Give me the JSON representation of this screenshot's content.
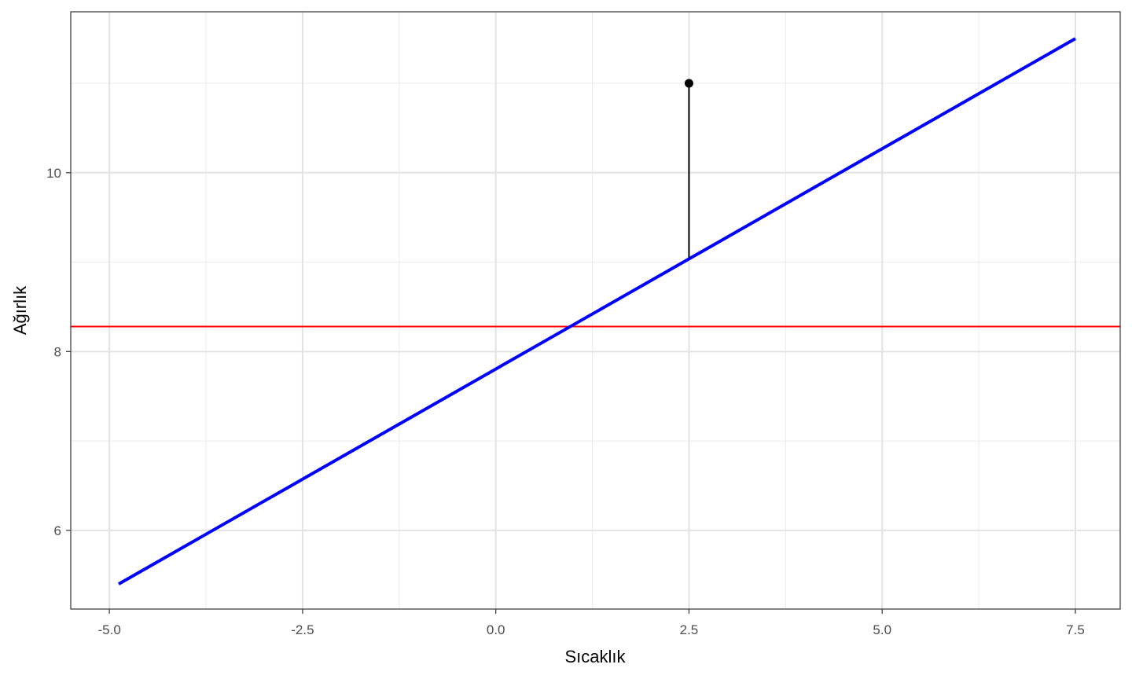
{
  "chart_data": {
    "type": "line",
    "title": "",
    "xlabel": "Sıcaklık",
    "ylabel": "Ağırlık",
    "xlim": [
      -5.5,
      8.08
    ],
    "ylim": [
      5.12,
      11.8
    ],
    "x_major_ticks": [
      -5.0,
      -2.5,
      0.0,
      2.5,
      5.0,
      7.5
    ],
    "x_tick_labels": [
      "-5.0",
      "-2.5",
      "0.0",
      "2.5",
      "5.0",
      "7.5"
    ],
    "x_minor_ticks": [
      -3.75,
      -1.25,
      1.25,
      3.75,
      6.25
    ],
    "y_major_ticks": [
      6,
      8,
      10
    ],
    "y_tick_labels": [
      "6",
      "8",
      "10"
    ],
    "y_minor_ticks": [
      7,
      9,
      11
    ],
    "grid": true,
    "series": [
      {
        "kind": "regression-line",
        "color": "#0000ff",
        "x": [
          -4.88,
          7.5
        ],
        "y": [
          5.4,
          11.5
        ]
      },
      {
        "kind": "horizontal-line",
        "color": "#ff0000",
        "y": 8.28
      },
      {
        "kind": "point",
        "color": "#000000",
        "x": 2.5,
        "y": 11.0
      },
      {
        "kind": "residual-segment",
        "color": "#000000",
        "x": 2.5,
        "y_from": 9.05,
        "y_to": 11.0
      }
    ]
  }
}
